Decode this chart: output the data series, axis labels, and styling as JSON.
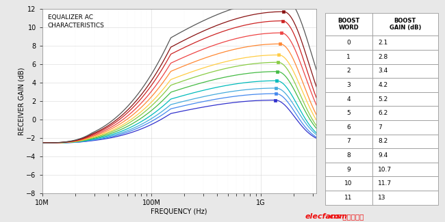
{
  "title": "EQUALIZER AC\nCHARACTERISTICS",
  "xlabel": "FREQUENCY (Hz)",
  "ylabel": "RECEIVER GAIN (dB)",
  "xlim_log": [
    10000000.0,
    3200000000.0
  ],
  "ylim": [
    -8.0,
    12.0
  ],
  "yticks": [
    -8,
    -6,
    -4,
    -2,
    0,
    2,
    4,
    6,
    8,
    10,
    12
  ],
  "xtick_labels": [
    "10M",
    "100M",
    "1G"
  ],
  "xtick_vals": [
    10000000.0,
    100000000.0,
    1000000000.0
  ],
  "boost_words": [
    0,
    1,
    2,
    3,
    4,
    5,
    6,
    7,
    8,
    9,
    10,
    11
  ],
  "boost_gains": [
    2.1,
    2.8,
    3.4,
    4.2,
    5.2,
    6.2,
    7.0,
    8.2,
    9.4,
    10.7,
    11.7,
    13.0
  ],
  "boost_gains_str": [
    "2.1",
    "2.8",
    "3.4",
    "4.2",
    "5.2",
    "6.2",
    "7",
    "8.2",
    "9.4",
    "10.7",
    "11.7",
    "13"
  ],
  "line_colors": [
    "#3030CC",
    "#4488EE",
    "#44AADD",
    "#00BBBB",
    "#44BB44",
    "#88CC44",
    "#FFCC44",
    "#FF8833",
    "#EE4444",
    "#CC2222",
    "#881111",
    "#555555"
  ],
  "background_color": "#e8e8e8",
  "plot_bg_color": "#ffffff",
  "watermark_text": "elecfans",
  "watermark_dot": ".",
  "watermark_text2": "com",
  "watermark_cn": " 电子发烧友",
  "watermark_color": "#EE1111",
  "table_header_col1": "BOOST\nWORD",
  "table_header_col2": "BOOST\nGAIN (dB)",
  "f_low_baseline": -2.55,
  "f_peaks": [
    1350000000.0,
    1370000000.0,
    1380000000.0,
    1400000000.0,
    1420000000.0,
    1440000000.0,
    1460000000.0,
    1500000000.0,
    1540000000.0,
    1580000000.0,
    1620000000.0,
    1700000000.0
  ],
  "sigma_lefts": [
    1.1,
    1.12,
    1.14,
    1.16,
    1.18,
    1.2,
    1.22,
    1.24,
    1.26,
    1.28,
    1.3,
    1.34
  ],
  "sigma_rights": [
    0.18,
    0.18,
    0.19,
    0.19,
    0.2,
    0.2,
    0.21,
    0.21,
    0.22,
    0.22,
    0.23,
    0.24
  ]
}
